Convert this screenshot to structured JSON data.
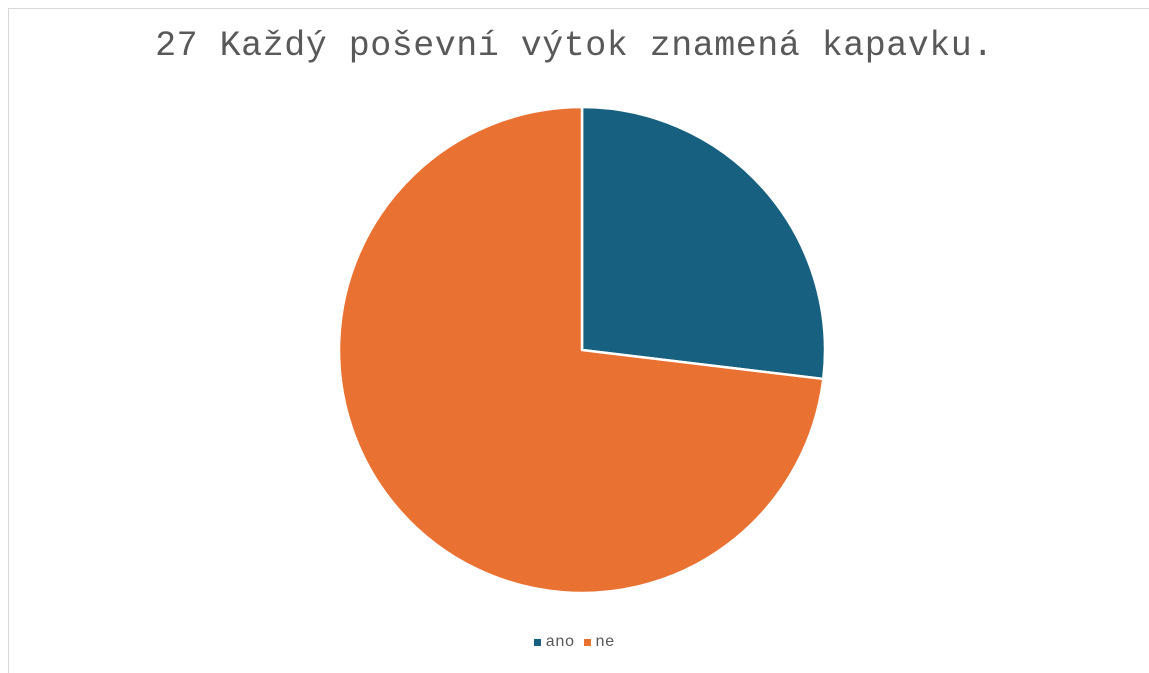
{
  "chart_data": {
    "type": "pie",
    "title": "27 Každý poševní výtok znamená kapavku.",
    "categories": [
      "ano",
      "ne"
    ],
    "values": [
      26.9,
      73.1
    ],
    "colors": [
      "#17607f",
      "#e97132"
    ],
    "legend_position": "bottom",
    "start_angle": "12 o'clock",
    "direction": "clockwise"
  },
  "legend": {
    "items": [
      {
        "label": "ano",
        "color": "#17607f"
      },
      {
        "label": "ne",
        "color": "#e97132"
      }
    ]
  }
}
